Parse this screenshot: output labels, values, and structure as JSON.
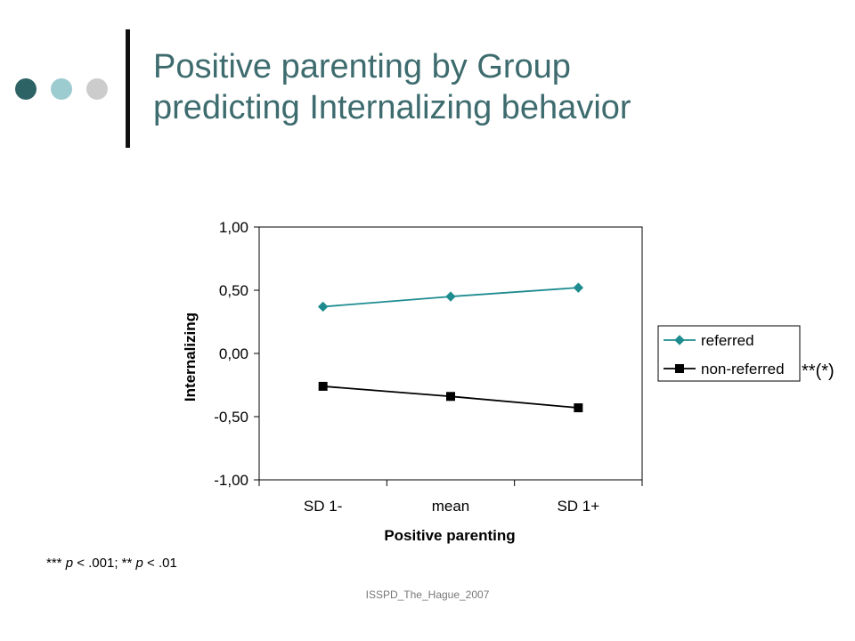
{
  "slide": {
    "title_line1": "Positive parenting by Group",
    "title_line2": "predicting Internalizing behavior",
    "significance": "**(*)",
    "footnote": {
      "part1": "*** ",
      "p1": "p",
      "part2": " < .001; ** ",
      "p2": "p",
      "part3": " < .01"
    },
    "footer": "ISSPD_The_Hague_2007",
    "decor_colors": [
      "#2e6366",
      "#9ccbd0",
      "#cccccc"
    ]
  },
  "chart_data": {
    "type": "line",
    "categories": [
      "SD 1-",
      "mean",
      "SD 1+"
    ],
    "y_ticks": [
      "1,00",
      "0,50",
      "0,00",
      "-0,50",
      "-1,00"
    ],
    "ylim": [
      -1.0,
      1.0
    ],
    "xlabel": "Positive parenting",
    "ylabel": "Internalizing",
    "legend_position": "right",
    "series": [
      {
        "name": "referred",
        "values": [
          0.37,
          0.45,
          0.52
        ],
        "color": "#1e8c8f",
        "marker": "diamond"
      },
      {
        "name": "non-referred",
        "values": [
          -0.26,
          -0.34,
          -0.43
        ],
        "color": "#000000",
        "marker": "square"
      }
    ]
  }
}
